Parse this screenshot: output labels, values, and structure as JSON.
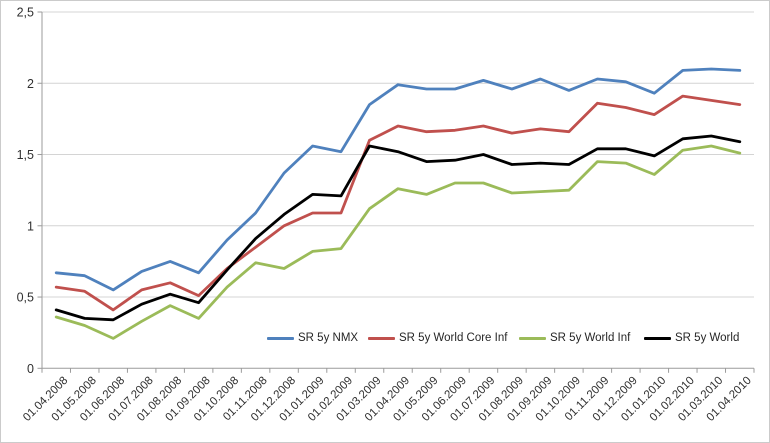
{
  "chart_data": {
    "type": "line",
    "title": "",
    "xlabel": "",
    "ylabel": "",
    "grid": true,
    "legend_position": "bottom-inside",
    "categories": [
      "01.04.2008",
      "01.05.2008",
      "01.06.2008",
      "01.07.2008",
      "01.08.2008",
      "01.09.2008",
      "01.10.2008",
      "01.11.2008",
      "01.12.2008",
      "01.01.2009",
      "01.02.2009",
      "01.03.2009",
      "01.04.2009",
      "01.05.2009",
      "01.06.2009",
      "01.07.2009",
      "01.08.2009",
      "01.09.2009",
      "01.10.2009",
      "01.11.2009",
      "01.12.2009",
      "01.01.2010",
      "01.02.2010",
      "01.03.2010",
      "01.04.2010"
    ],
    "series": [
      {
        "name": "SR 5y NMX",
        "color": "#4F81BD",
        "values": [
          0.67,
          0.65,
          0.55,
          0.68,
          0.75,
          0.67,
          0.9,
          1.09,
          1.37,
          1.56,
          1.52,
          1.85,
          1.99,
          1.96,
          1.96,
          2.02,
          1.96,
          2.03,
          1.95,
          2.03,
          2.01,
          1.93,
          2.09,
          2.1,
          2.09
        ]
      },
      {
        "name": "SR 5y World Core Inf",
        "color": "#C0504D",
        "values": [
          0.57,
          0.54,
          0.41,
          0.55,
          0.6,
          0.51,
          0.7,
          0.85,
          1.0,
          1.09,
          1.09,
          1.6,
          1.7,
          1.66,
          1.67,
          1.7,
          1.65,
          1.68,
          1.66,
          1.86,
          1.83,
          1.78,
          1.91,
          1.88,
          1.85
        ]
      },
      {
        "name": "SR 5y World Inf",
        "color": "#9BBB59",
        "values": [
          0.36,
          0.3,
          0.21,
          0.33,
          0.44,
          0.35,
          0.57,
          0.74,
          0.7,
          0.82,
          0.84,
          1.12,
          1.26,
          1.22,
          1.3,
          1.3,
          1.23,
          1.24,
          1.25,
          1.45,
          1.44,
          1.36,
          1.53,
          1.56,
          1.51
        ]
      },
      {
        "name": "SR 5y World",
        "color": "#000000",
        "values": [
          0.41,
          0.35,
          0.34,
          0.45,
          0.52,
          0.46,
          0.69,
          0.91,
          1.08,
          1.22,
          1.21,
          1.56,
          1.52,
          1.45,
          1.46,
          1.5,
          1.43,
          1.44,
          1.43,
          1.54,
          1.54,
          1.49,
          1.61,
          1.63,
          1.59
        ]
      }
    ],
    "y_axis": {
      "min": 0,
      "max": 2.5,
      "step": 0.5,
      "tick_labels": [
        "0",
        "0,5",
        "1",
        "1,5",
        "2",
        "2,5"
      ]
    }
  },
  "styles": {
    "background": "#FFFFFF",
    "border_color": "#CBCBCB",
    "grid_color": "#D4D4D4",
    "axis_color": "#9B9B9B",
    "text_color": "#303030"
  }
}
